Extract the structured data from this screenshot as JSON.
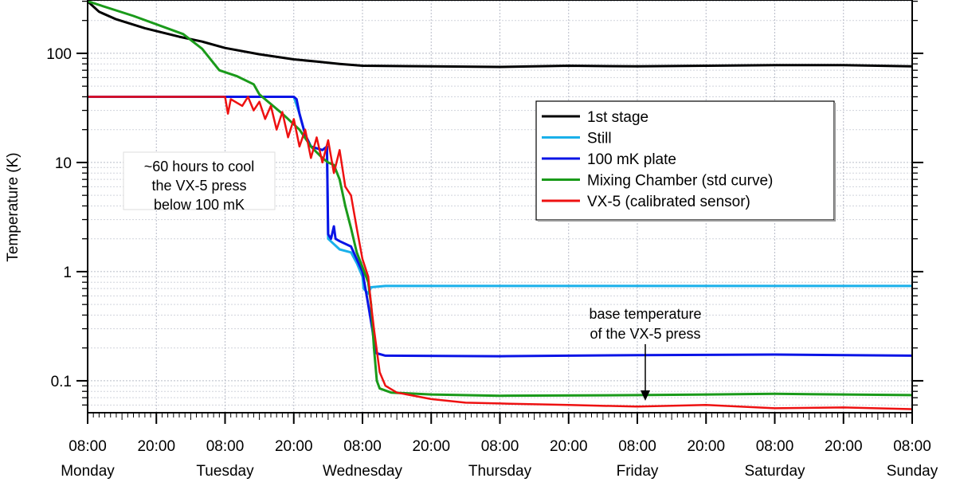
{
  "chart_data": {
    "type": "line",
    "ylabel": "Temperature (K)",
    "yscale": "log",
    "ylim": [
      0.051,
      308
    ],
    "xlim_hours": [
      0,
      144
    ],
    "x_unit": "hours since Monday 08:00",
    "y_tick_values": [
      100,
      10,
      1,
      0.1
    ],
    "y_tick_labels": [
      "100",
      "10",
      "1",
      "0.1"
    ],
    "x_ticks": [
      {
        "h": 0,
        "time": "08:00",
        "day": "Monday"
      },
      {
        "h": 12,
        "time": "20:00",
        "day": ""
      },
      {
        "h": 24,
        "time": "08:00",
        "day": "Tuesday"
      },
      {
        "h": 36,
        "time": "20:00",
        "day": ""
      },
      {
        "h": 48,
        "time": "08:00",
        "day": "Wednesday"
      },
      {
        "h": 60,
        "time": "20:00",
        "day": ""
      },
      {
        "h": 72,
        "time": "08:00",
        "day": "Thursday"
      },
      {
        "h": 84,
        "time": "20:00",
        "day": ""
      },
      {
        "h": 96,
        "time": "08:00",
        "day": "Friday"
      },
      {
        "h": 108,
        "time": "20:00",
        "day": ""
      },
      {
        "h": 120,
        "time": "08:00",
        "day": "Saturday"
      },
      {
        "h": 132,
        "time": "20:00",
        "day": ""
      },
      {
        "h": 144,
        "time": "08:00",
        "day": "Sunday"
      }
    ],
    "grid": true,
    "legend_position": "center-right",
    "series": [
      {
        "name": "1st stage",
        "color": "#000000",
        "width": 3,
        "points": [
          [
            0,
            300
          ],
          [
            2,
            240
          ],
          [
            5,
            205
          ],
          [
            10,
            170
          ],
          [
            16,
            142
          ],
          [
            20,
            128
          ],
          [
            24,
            112
          ],
          [
            30,
            98
          ],
          [
            36,
            88
          ],
          [
            40,
            84
          ],
          [
            44,
            80
          ],
          [
            48,
            77
          ],
          [
            60,
            76
          ],
          [
            72,
            75
          ],
          [
            84,
            77
          ],
          [
            96,
            76
          ],
          [
            108,
            77
          ],
          [
            120,
            78
          ],
          [
            132,
            78
          ],
          [
            144,
            76
          ]
        ]
      },
      {
        "name": "Still",
        "color": "#1ab0ea",
        "width": 3,
        "points": [
          [
            0,
            40
          ],
          [
            36,
            40
          ],
          [
            37,
            28
          ],
          [
            38,
            18
          ],
          [
            39,
            14
          ],
          [
            41,
            13
          ],
          [
            41.8,
            14
          ],
          [
            42,
            2.0
          ],
          [
            44,
            1.6
          ],
          [
            46,
            1.5
          ],
          [
            47,
            1.2
          ],
          [
            48,
            0.9
          ],
          [
            48.2,
            0.7
          ],
          [
            49,
            0.63
          ],
          [
            49.5,
            0.72
          ],
          [
            52,
            0.74
          ],
          [
            144,
            0.74
          ]
        ]
      },
      {
        "name": "100 mK plate",
        "color": "#0a14e6",
        "width": 3,
        "points": [
          [
            0,
            40
          ],
          [
            36,
            40
          ],
          [
            36.5,
            38
          ],
          [
            37,
            28
          ],
          [
            38,
            18
          ],
          [
            39,
            14
          ],
          [
            41,
            13
          ],
          [
            41.8,
            14
          ],
          [
            42,
            2.2
          ],
          [
            42.5,
            2.0
          ],
          [
            43,
            2.6
          ],
          [
            43.3,
            2.0
          ],
          [
            44,
            1.9
          ],
          [
            46,
            1.7
          ],
          [
            47,
            1.3
          ],
          [
            48,
            1.0
          ],
          [
            49,
            0.5
          ],
          [
            49.7,
            0.3
          ],
          [
            50.3,
            0.18
          ],
          [
            52,
            0.17
          ],
          [
            72,
            0.168
          ],
          [
            96,
            0.172
          ],
          [
            120,
            0.174
          ],
          [
            144,
            0.17
          ]
        ]
      },
      {
        "name": "Mixing Chamber (std curve)",
        "color": "#1a9a1a",
        "width": 3,
        "points": [
          [
            0,
            300
          ],
          [
            8,
            220
          ],
          [
            16.7,
            150
          ],
          [
            20,
            110
          ],
          [
            23,
            70
          ],
          [
            26,
            62
          ],
          [
            29,
            52
          ],
          [
            30,
            42
          ],
          [
            34,
            28
          ],
          [
            37,
            20
          ],
          [
            39,
            14
          ],
          [
            41,
            11
          ],
          [
            42,
            10
          ],
          [
            43,
            9.5
          ],
          [
            44,
            7
          ],
          [
            45,
            4
          ],
          [
            46,
            2.5
          ],
          [
            47,
            1.5
          ],
          [
            48,
            1.1
          ],
          [
            49,
            0.8
          ],
          [
            49.5,
            0.5
          ],
          [
            50,
            0.2
          ],
          [
            50.5,
            0.1
          ],
          [
            51,
            0.085
          ],
          [
            53,
            0.078
          ],
          [
            60,
            0.075
          ],
          [
            72,
            0.073
          ],
          [
            96,
            0.074
          ],
          [
            120,
            0.076
          ],
          [
            144,
            0.074
          ]
        ]
      },
      {
        "name": "VX-5 (calibrated sensor)",
        "color": "#ee1111",
        "width": 2.5,
        "points": [
          [
            0,
            40
          ],
          [
            24,
            40
          ],
          [
            24.5,
            28
          ],
          [
            25,
            38
          ],
          [
            27,
            33
          ],
          [
            28,
            40
          ],
          [
            29,
            30
          ],
          [
            30,
            36
          ],
          [
            31,
            25
          ],
          [
            32,
            33
          ],
          [
            33,
            20
          ],
          [
            34,
            29
          ],
          [
            35,
            17
          ],
          [
            36,
            25
          ],
          [
            37,
            14
          ],
          [
            38,
            20
          ],
          [
            39,
            11
          ],
          [
            40,
            17
          ],
          [
            41,
            10
          ],
          [
            42,
            16
          ],
          [
            43,
            8
          ],
          [
            44,
            13
          ],
          [
            45,
            6
          ],
          [
            46,
            5
          ],
          [
            47,
            2.5
          ],
          [
            48,
            1.3
          ],
          [
            49,
            0.9
          ],
          [
            49.5,
            0.5
          ],
          [
            50,
            0.3
          ],
          [
            51,
            0.12
          ],
          [
            52,
            0.09
          ],
          [
            54,
            0.078
          ],
          [
            60,
            0.068
          ],
          [
            66,
            0.063
          ],
          [
            72,
            0.062
          ],
          [
            84,
            0.06
          ],
          [
            96,
            0.058
          ],
          [
            108,
            0.06
          ],
          [
            120,
            0.056
          ],
          [
            132,
            0.057
          ],
          [
            144,
            0.055
          ]
        ]
      }
    ],
    "annotations": [
      {
        "lines": [
          "~60 hours to cool",
          "the VX-5 press",
          "below 100 mK"
        ]
      },
      {
        "lines": [
          "base temperature",
          "of the VX-5 press"
        ],
        "arrow_to": {
          "h": 97,
          "value": 0.064
        }
      }
    ]
  }
}
